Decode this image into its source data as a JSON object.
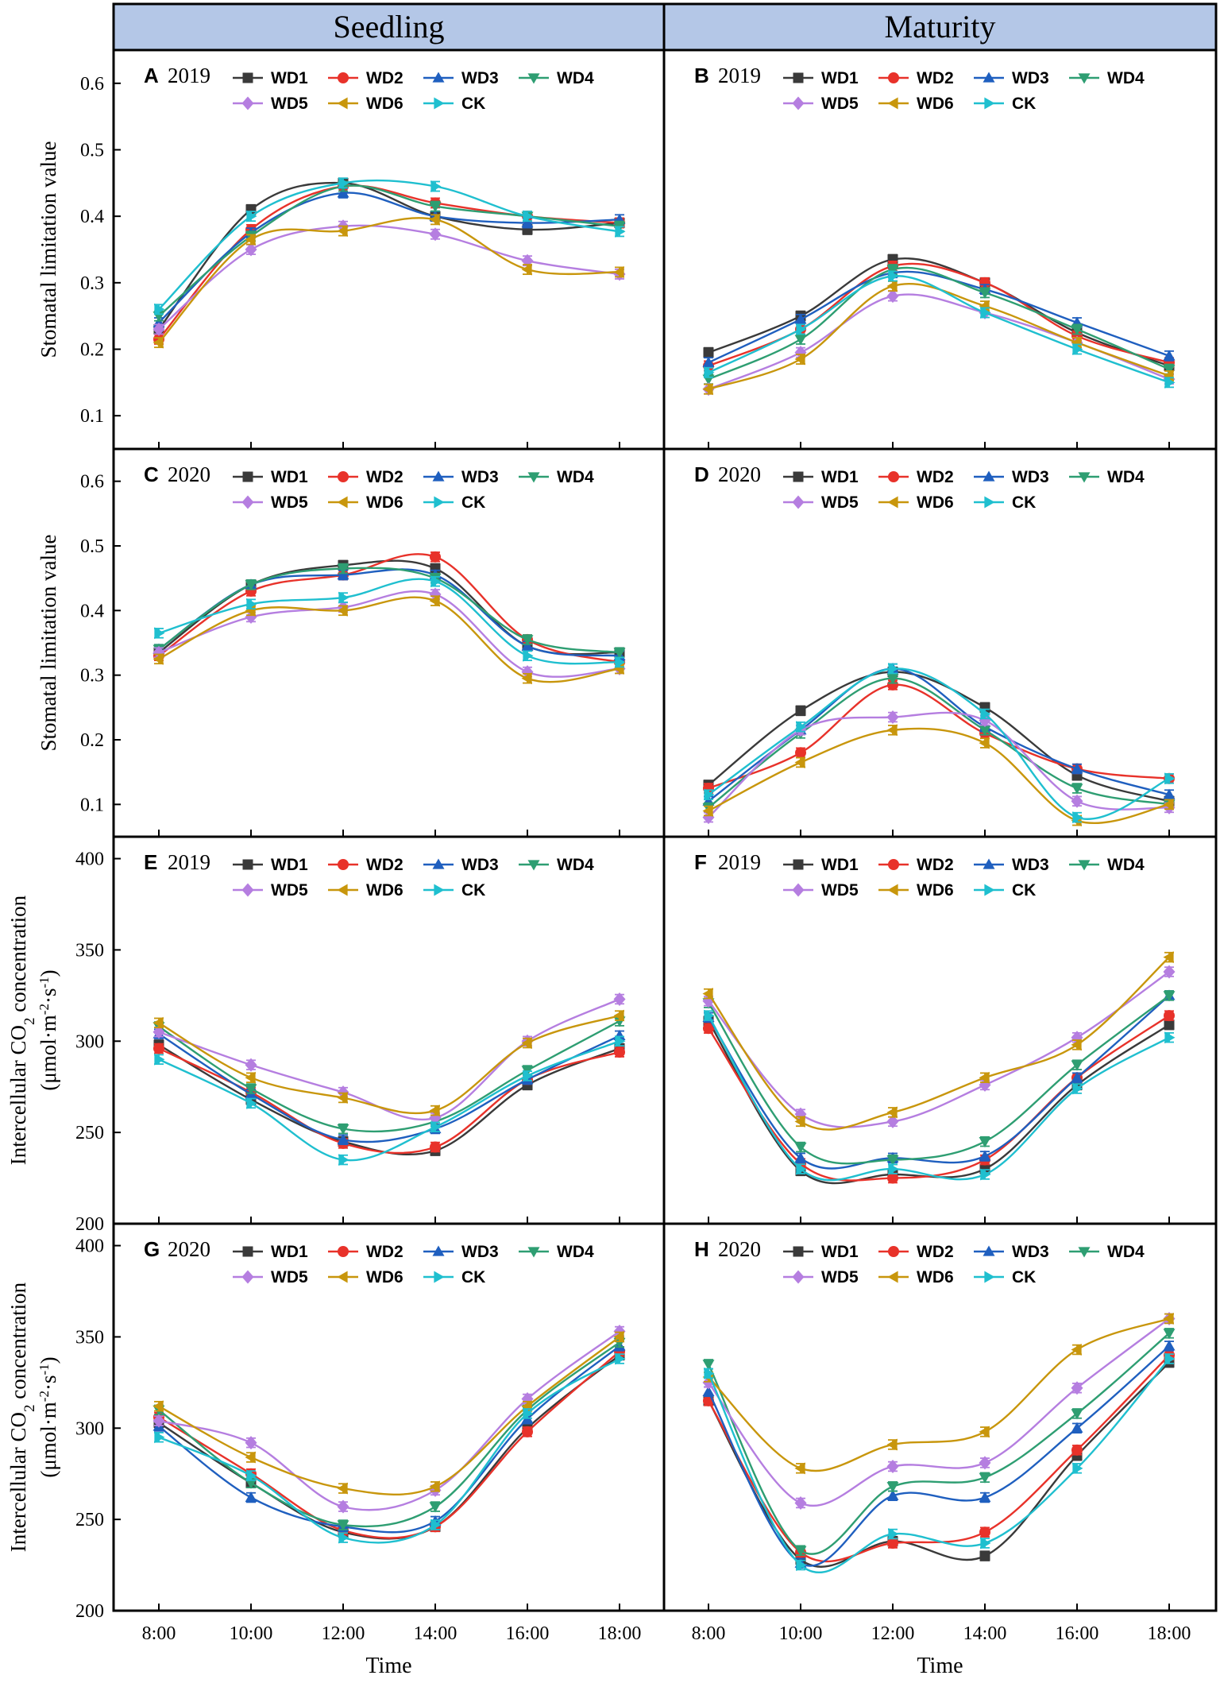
{
  "column_headers": [
    "Seedling",
    "Maturity"
  ],
  "x_axis_label": "Time",
  "legend": [
    "WD1",
    "WD2",
    "WD3",
    "WD4",
    "WD5",
    "WD6",
    "CK"
  ],
  "series_colors": [
    "#3a3a3a",
    "#e8322a",
    "#1f5fbf",
    "#2e9e72",
    "#b57ee0",
    "#c8960c",
    "#1fbfcf"
  ],
  "series_markers": [
    "square",
    "circle",
    "triangle-up",
    "triangle-down",
    "diamond",
    "triangle-left",
    "triangle-right"
  ],
  "chart_data": [
    {
      "id": "A",
      "panel_label": "A",
      "year": "2019",
      "type": "line",
      "ylabel": "Stomatal limitation value",
      "x": [
        "8:00",
        "10:00",
        "12:00",
        "14:00",
        "16:00",
        "18:00"
      ],
      "ylim": [
        0.05,
        0.65
      ],
      "yticks": [
        "0.1",
        "0.2",
        "0.3",
        "0.4",
        "0.5",
        "0.6"
      ],
      "series": [
        {
          "name": "WD1",
          "values": [
            0.23,
            0.41,
            0.45,
            0.4,
            0.38,
            0.39
          ]
        },
        {
          "name": "WD2",
          "values": [
            0.215,
            0.38,
            0.445,
            0.42,
            0.4,
            0.39
          ]
        },
        {
          "name": "WD3",
          "values": [
            0.24,
            0.375,
            0.435,
            0.4,
            0.39,
            0.395
          ]
        },
        {
          "name": "WD4",
          "values": [
            0.25,
            0.37,
            0.445,
            0.415,
            0.4,
            0.385
          ]
        },
        {
          "name": "WD5",
          "values": [
            0.23,
            0.35,
            0.385,
            0.373,
            0.333,
            0.313
          ]
        },
        {
          "name": "WD6",
          "values": [
            0.21,
            0.365,
            0.378,
            0.395,
            0.32,
            0.316
          ]
        },
        {
          "name": "CK",
          "values": [
            0.26,
            0.4,
            0.45,
            0.445,
            0.4,
            0.377
          ]
        }
      ]
    },
    {
      "id": "B",
      "panel_label": "B",
      "year": "2019",
      "type": "line",
      "ylabel": "",
      "x": [
        "8:00",
        "10:00",
        "12:00",
        "14:00",
        "16:00",
        "18:00"
      ],
      "ylim": [
        0.05,
        0.65
      ],
      "yticks": [],
      "series": [
        {
          "name": "WD1",
          "values": [
            0.195,
            0.25,
            0.335,
            0.3,
            0.225,
            0.175
          ]
        },
        {
          "name": "WD2",
          "values": [
            0.175,
            0.23,
            0.325,
            0.3,
            0.22,
            0.18
          ]
        },
        {
          "name": "WD3",
          "values": [
            0.18,
            0.245,
            0.315,
            0.29,
            0.24,
            0.19
          ]
        },
        {
          "name": "WD4",
          "values": [
            0.155,
            0.215,
            0.32,
            0.285,
            0.23,
            0.17
          ]
        },
        {
          "name": "WD5",
          "values": [
            0.14,
            0.195,
            0.28,
            0.255,
            0.21,
            0.155
          ]
        },
        {
          "name": "WD6",
          "values": [
            0.14,
            0.185,
            0.295,
            0.265,
            0.21,
            0.16
          ]
        },
        {
          "name": "CK",
          "values": [
            0.165,
            0.23,
            0.31,
            0.255,
            0.2,
            0.15
          ]
        }
      ]
    },
    {
      "id": "C",
      "panel_label": "C",
      "year": "2020",
      "type": "line",
      "ylabel": "Stomatal limitation value",
      "x": [
        "8:00",
        "10:00",
        "12:00",
        "14:00",
        "16:00",
        "18:00"
      ],
      "ylim": [
        0.05,
        0.65
      ],
      "yticks": [
        "0.1",
        "0.2",
        "0.3",
        "0.4",
        "0.5",
        "0.6"
      ],
      "series": [
        {
          "name": "WD1",
          "values": [
            0.335,
            0.44,
            0.47,
            0.465,
            0.345,
            0.335
          ]
        },
        {
          "name": "WD2",
          "values": [
            0.33,
            0.43,
            0.455,
            0.483,
            0.355,
            0.32
          ]
        },
        {
          "name": "WD3",
          "values": [
            0.34,
            0.44,
            0.455,
            0.455,
            0.345,
            0.33
          ]
        },
        {
          "name": "WD4",
          "values": [
            0.34,
            0.44,
            0.465,
            0.45,
            0.355,
            0.335
          ]
        },
        {
          "name": "WD5",
          "values": [
            0.335,
            0.39,
            0.405,
            0.425,
            0.305,
            0.31
          ]
        },
        {
          "name": "WD6",
          "values": [
            0.325,
            0.4,
            0.4,
            0.415,
            0.295,
            0.31
          ]
        },
        {
          "name": "CK",
          "values": [
            0.365,
            0.41,
            0.42,
            0.445,
            0.33,
            0.32
          ]
        }
      ]
    },
    {
      "id": "D",
      "panel_label": "D",
      "year": "2020",
      "type": "line",
      "ylabel": "",
      "x": [
        "8:00",
        "10:00",
        "12:00",
        "14:00",
        "16:00",
        "18:00"
      ],
      "ylim": [
        0.05,
        0.65
      ],
      "yticks": [],
      "series": [
        {
          "name": "WD1",
          "values": [
            0.13,
            0.245,
            0.305,
            0.25,
            0.145,
            0.105
          ]
        },
        {
          "name": "WD2",
          "values": [
            0.125,
            0.18,
            0.285,
            0.21,
            0.155,
            0.14
          ]
        },
        {
          "name": "WD3",
          "values": [
            0.105,
            0.215,
            0.31,
            0.22,
            0.155,
            0.115
          ]
        },
        {
          "name": "WD4",
          "values": [
            0.095,
            0.21,
            0.295,
            0.215,
            0.125,
            0.1
          ]
        },
        {
          "name": "WD5",
          "values": [
            0.08,
            0.215,
            0.235,
            0.23,
            0.105,
            0.095
          ]
        },
        {
          "name": "WD6",
          "values": [
            0.09,
            0.165,
            0.215,
            0.195,
            0.075,
            0.1
          ]
        },
        {
          "name": "CK",
          "values": [
            0.115,
            0.22,
            0.31,
            0.24,
            0.08,
            0.14
          ]
        }
      ]
    },
    {
      "id": "E",
      "panel_label": "E",
      "year": "2019",
      "type": "line",
      "ylabel": "Intercellular CO2 concentration (μmol·m-2·s-1)",
      "x": [
        "8:00",
        "10:00",
        "12:00",
        "14:00",
        "16:00",
        "18:00"
      ],
      "ylim": [
        200,
        412
      ],
      "yticks": [
        "200",
        "250",
        "300",
        "350",
        "400"
      ],
      "series": [
        {
          "name": "WD1",
          "values": [
            298,
            268,
            245,
            240,
            276,
            296
          ]
        },
        {
          "name": "WD2",
          "values": [
            296,
            272,
            244,
            242,
            279,
            294
          ]
        },
        {
          "name": "WD3",
          "values": [
            304,
            271,
            246,
            252,
            279,
            303
          ]
        },
        {
          "name": "WD4",
          "values": [
            308,
            274,
            252,
            256,
            284,
            311
          ]
        },
        {
          "name": "WD5",
          "values": [
            305,
            287,
            272,
            258,
            300,
            323
          ]
        },
        {
          "name": "WD6",
          "values": [
            310,
            280,
            269,
            262,
            299,
            314
          ]
        },
        {
          "name": "CK",
          "values": [
            290,
            266,
            235,
            253,
            281,
            300
          ]
        }
      ]
    },
    {
      "id": "F",
      "panel_label": "F",
      "year": "2019",
      "type": "line",
      "ylabel": "",
      "x": [
        "8:00",
        "10:00",
        "12:00",
        "14:00",
        "16:00",
        "18:00"
      ],
      "ylim": [
        200,
        412
      ],
      "yticks": [],
      "series": [
        {
          "name": "WD1",
          "values": [
            311,
            229,
            227,
            230,
            276,
            309
          ]
        },
        {
          "name": "WD2",
          "values": [
            307,
            233,
            225,
            235,
            280,
            314
          ]
        },
        {
          "name": "WD3",
          "values": [
            313,
            236,
            236,
            237,
            280,
            325
          ]
        },
        {
          "name": "WD4",
          "values": [
            321,
            242,
            235,
            245,
            287,
            325
          ]
        },
        {
          "name": "WD5",
          "values": [
            322,
            260,
            256,
            276,
            302,
            338
          ]
        },
        {
          "name": "WD6",
          "values": [
            326,
            256,
            261,
            280,
            298,
            346
          ]
        },
        {
          "name": "CK",
          "values": [
            314,
            230,
            230,
            227,
            274,
            302
          ]
        }
      ]
    },
    {
      "id": "G",
      "panel_label": "G",
      "year": "2020",
      "type": "line",
      "ylabel": "Intercellular CO2 concentration (μmol·m-2·s-1)",
      "x": [
        "8:00",
        "10:00",
        "12:00",
        "14:00",
        "16:00",
        "18:00"
      ],
      "ylim": [
        200,
        412
      ],
      "yticks": [
        "200",
        "250",
        "300",
        "350",
        "400"
      ],
      "series": [
        {
          "name": "WD1",
          "values": [
            303,
            270,
            243,
            246,
            300,
            340
          ]
        },
        {
          "name": "WD2",
          "values": [
            306,
            275,
            244,
            246,
            298,
            342
          ]
        },
        {
          "name": "WD3",
          "values": [
            301,
            262,
            246,
            249,
            305,
            345
          ]
        },
        {
          "name": "WD4",
          "values": [
            310,
            270,
            247,
            257,
            310,
            347
          ]
        },
        {
          "name": "WD5",
          "values": [
            304,
            292,
            257,
            266,
            316,
            353
          ]
        },
        {
          "name": "WD6",
          "values": [
            312,
            284,
            267,
            268,
            312,
            350
          ]
        },
        {
          "name": "CK",
          "values": [
            295,
            274,
            240,
            247,
            308,
            338
          ]
        }
      ]
    },
    {
      "id": "H",
      "panel_label": "H",
      "year": "2020",
      "type": "line",
      "ylabel": "",
      "x": [
        "8:00",
        "10:00",
        "12:00",
        "14:00",
        "16:00",
        "18:00"
      ],
      "ylim": [
        200,
        412
      ],
      "yticks": [],
      "series": [
        {
          "name": "WD1",
          "values": [
            315,
            228,
            238,
            230,
            285,
            336
          ]
        },
        {
          "name": "WD2",
          "values": [
            315,
            232,
            237,
            243,
            288,
            340
          ]
        },
        {
          "name": "WD3",
          "values": [
            320,
            226,
            263,
            262,
            300,
            345
          ]
        },
        {
          "name": "WD4",
          "values": [
            335,
            233,
            268,
            273,
            308,
            352
          ]
        },
        {
          "name": "WD5",
          "values": [
            325,
            259,
            279,
            281,
            322,
            360
          ]
        },
        {
          "name": "WD6",
          "values": [
            328,
            278,
            291,
            298,
            343,
            360
          ]
        },
        {
          "name": "CK",
          "values": [
            330,
            225,
            242,
            237,
            278,
            338
          ]
        }
      ]
    }
  ]
}
